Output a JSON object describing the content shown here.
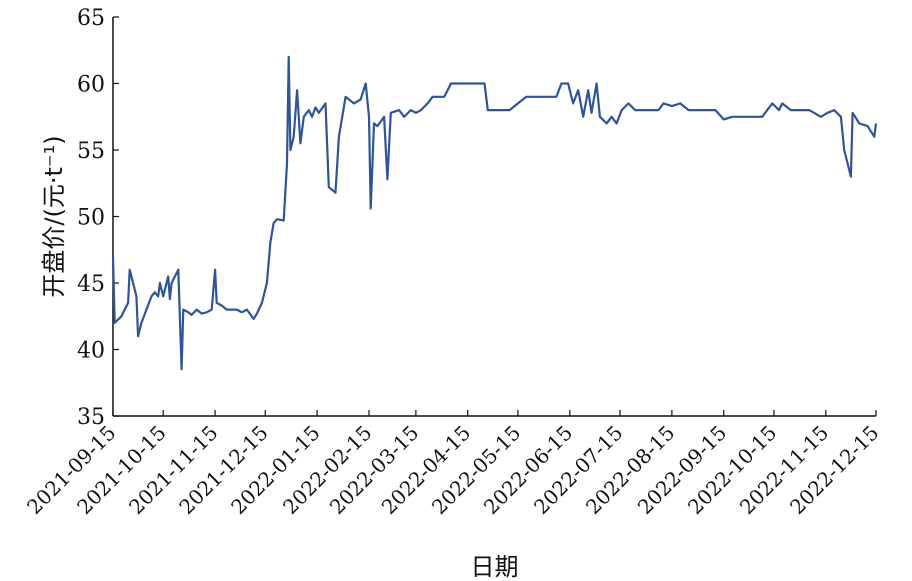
{
  "chart_data": {
    "type": "line",
    "xlabel": "日期",
    "ylabel": "开盘价/(元·t⁻¹)",
    "ylim": [
      35,
      65
    ],
    "yticks": [
      35,
      40,
      45,
      50,
      55,
      60,
      65
    ],
    "xlim": [
      "2021-09-15",
      "2022-12-15"
    ],
    "xticks": [
      "2021-09-15",
      "2021-10-15",
      "2021-11-15",
      "2021-12-15",
      "2022-01-15",
      "2022-02-15",
      "2022-03-15",
      "2022-04-15",
      "2022-05-15",
      "2022-06-15",
      "2022-07-15",
      "2022-08-15",
      "2022-09-15",
      "2022-10-15",
      "2022-11-15",
      "2022-12-15"
    ],
    "grid": false,
    "line_color": "#2f5597",
    "series": [
      {
        "name": "",
        "points": [
          [
            "2021-09-15",
            47.0
          ],
          [
            "2021-09-16",
            42.0
          ],
          [
            "2021-09-20",
            42.5
          ],
          [
            "2021-09-24",
            43.5
          ],
          [
            "2021-09-25",
            46.0
          ],
          [
            "2021-09-27",
            45.0
          ],
          [
            "2021-09-29",
            44.0
          ],
          [
            "2021-09-30",
            41.0
          ],
          [
            "2021-10-02",
            42.0
          ],
          [
            "2021-10-08",
            44.0
          ],
          [
            "2021-10-10",
            44.3
          ],
          [
            "2021-10-12",
            44.0
          ],
          [
            "2021-10-13",
            45.0
          ],
          [
            "2021-10-15",
            44.0
          ],
          [
            "2021-10-18",
            45.5
          ],
          [
            "2021-10-19",
            43.8
          ],
          [
            "2021-10-20",
            45.0
          ],
          [
            "2021-10-22",
            45.5
          ],
          [
            "2021-10-24",
            46.0
          ],
          [
            "2021-10-26",
            38.5
          ],
          [
            "2021-10-27",
            43.0
          ],
          [
            "2021-10-30",
            42.8
          ],
          [
            "2021-11-01",
            42.6
          ],
          [
            "2021-11-04",
            43.0
          ],
          [
            "2021-11-07",
            42.7
          ],
          [
            "2021-11-10",
            42.8
          ],
          [
            "2021-11-13",
            43.0
          ],
          [
            "2021-11-15",
            46.0
          ],
          [
            "2021-11-16",
            43.5
          ],
          [
            "2021-11-19",
            43.3
          ],
          [
            "2021-11-22",
            43.0
          ],
          [
            "2021-11-28",
            43.0
          ],
          [
            "2021-12-01",
            42.8
          ],
          [
            "2021-12-04",
            43.0
          ],
          [
            "2021-12-08",
            42.3
          ],
          [
            "2021-12-10",
            42.7
          ],
          [
            "2021-12-13",
            43.5
          ],
          [
            "2021-12-16",
            45.0
          ],
          [
            "2021-12-18",
            48.0
          ],
          [
            "2021-12-20",
            49.5
          ],
          [
            "2021-12-22",
            49.8
          ],
          [
            "2021-12-26",
            49.7
          ],
          [
            "2021-12-28",
            54.0
          ],
          [
            "2021-12-29",
            62.0
          ],
          [
            "2021-12-30",
            55.0
          ],
          [
            "2022-01-01",
            56.0
          ],
          [
            "2022-01-03",
            59.5
          ],
          [
            "2022-01-05",
            55.5
          ],
          [
            "2022-01-07",
            57.5
          ],
          [
            "2022-01-10",
            58.0
          ],
          [
            "2022-01-12",
            57.5
          ],
          [
            "2022-01-14",
            58.2
          ],
          [
            "2022-01-16",
            57.8
          ],
          [
            "2022-01-20",
            58.5
          ],
          [
            "2022-01-22",
            52.2
          ],
          [
            "2022-01-26",
            51.8
          ],
          [
            "2022-01-28",
            56.0
          ],
          [
            "2022-02-01",
            59.0
          ],
          [
            "2022-02-06",
            58.5
          ],
          [
            "2022-02-10",
            58.8
          ],
          [
            "2022-02-13",
            60.0
          ],
          [
            "2022-02-15",
            57.5
          ],
          [
            "2022-02-16",
            50.6
          ],
          [
            "2022-02-18",
            57.0
          ],
          [
            "2022-02-20",
            56.8
          ],
          [
            "2022-02-24",
            57.5
          ],
          [
            "2022-02-26",
            52.8
          ],
          [
            "2022-02-28",
            57.8
          ],
          [
            "2022-03-05",
            58.0
          ],
          [
            "2022-03-08",
            57.5
          ],
          [
            "2022-03-12",
            58.0
          ],
          [
            "2022-03-15",
            57.8
          ],
          [
            "2022-03-18",
            58.0
          ],
          [
            "2022-03-22",
            58.5
          ],
          [
            "2022-03-25",
            59.0
          ],
          [
            "2022-04-01",
            59.0
          ],
          [
            "2022-04-05",
            60.0
          ],
          [
            "2022-04-10",
            60.0
          ],
          [
            "2022-04-15",
            60.0
          ],
          [
            "2022-04-20",
            60.0
          ],
          [
            "2022-04-25",
            60.0
          ],
          [
            "2022-04-27",
            58.0
          ],
          [
            "2022-05-05",
            58.0
          ],
          [
            "2022-05-10",
            58.0
          ],
          [
            "2022-05-15",
            58.5
          ],
          [
            "2022-05-20",
            59.0
          ],
          [
            "2022-05-25",
            59.0
          ],
          [
            "2022-06-01",
            59.0
          ],
          [
            "2022-06-07",
            59.0
          ],
          [
            "2022-06-10",
            60.0
          ],
          [
            "2022-06-14",
            60.0
          ],
          [
            "2022-06-17",
            58.5
          ],
          [
            "2022-06-20",
            59.5
          ],
          [
            "2022-06-23",
            57.5
          ],
          [
            "2022-06-26",
            59.5
          ],
          [
            "2022-06-28",
            57.8
          ],
          [
            "2022-07-01",
            60.0
          ],
          [
            "2022-07-03",
            57.5
          ],
          [
            "2022-07-07",
            57.0
          ],
          [
            "2022-07-10",
            57.5
          ],
          [
            "2022-07-13",
            57.0
          ],
          [
            "2022-07-16",
            58.0
          ],
          [
            "2022-07-20",
            58.5
          ],
          [
            "2022-07-24",
            58.0
          ],
          [
            "2022-08-01",
            58.0
          ],
          [
            "2022-08-07",
            58.0
          ],
          [
            "2022-08-10",
            58.5
          ],
          [
            "2022-08-15",
            58.3
          ],
          [
            "2022-08-20",
            58.5
          ],
          [
            "2022-08-25",
            58.0
          ],
          [
            "2022-09-01",
            58.0
          ],
          [
            "2022-09-10",
            58.0
          ],
          [
            "2022-09-15",
            57.3
          ],
          [
            "2022-09-20",
            57.5
          ],
          [
            "2022-09-30",
            57.5
          ],
          [
            "2022-10-08",
            57.5
          ],
          [
            "2022-10-11",
            58.0
          ],
          [
            "2022-10-14",
            58.5
          ],
          [
            "2022-10-18",
            58.0
          ],
          [
            "2022-10-20",
            58.5
          ],
          [
            "2022-10-25",
            58.0
          ],
          [
            "2022-11-01",
            58.0
          ],
          [
            "2022-11-05",
            58.0
          ],
          [
            "2022-11-08",
            57.8
          ],
          [
            "2022-11-12",
            57.5
          ],
          [
            "2022-11-16",
            57.8
          ],
          [
            "2022-11-20",
            58.0
          ],
          [
            "2022-11-24",
            57.5
          ],
          [
            "2022-11-26",
            55.0
          ],
          [
            "2022-11-30",
            53.0
          ],
          [
            "2022-12-01",
            57.8
          ],
          [
            "2022-12-05",
            57.0
          ],
          [
            "2022-12-10",
            56.8
          ],
          [
            "2022-12-14",
            56.0
          ],
          [
            "2022-12-15",
            57.0
          ]
        ]
      }
    ]
  }
}
